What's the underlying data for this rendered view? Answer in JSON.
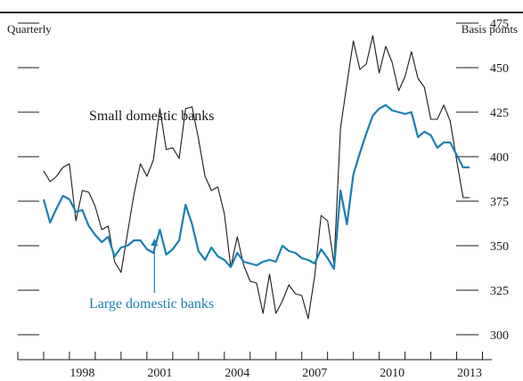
{
  "header": {
    "left": "Quarterly",
    "right": "Basis points"
  },
  "chart_data": {
    "type": "line",
    "xlabel": "",
    "ylabel": "Basis points",
    "ylim": [
      288,
      488
    ],
    "xlim": [
      1996.0,
      2014.5
    ],
    "xticks": [
      1998,
      2001,
      2004,
      2007,
      2010,
      2013
    ],
    "yticks": [
      300,
      325,
      350,
      375,
      400,
      425,
      450,
      475
    ],
    "grid": false,
    "series": [
      {
        "name": "Small domestic banks",
        "color": "#1a1a1a",
        "x": [
          1997.0,
          1997.25,
          1997.5,
          1997.75,
          1998.0,
          1998.25,
          1998.5,
          1998.75,
          1999.0,
          1999.25,
          1999.5,
          1999.75,
          2000.0,
          2000.25,
          2000.5,
          2000.75,
          2001.0,
          2001.25,
          2001.5,
          2001.75,
          2002.0,
          2002.25,
          2002.5,
          2002.75,
          2003.0,
          2003.25,
          2003.5,
          2003.75,
          2004.0,
          2004.25,
          2004.5,
          2004.75,
          2005.0,
          2005.25,
          2005.5,
          2005.75,
          2006.0,
          2006.25,
          2006.5,
          2006.75,
          2007.0,
          2007.25,
          2007.5,
          2007.75,
          2008.0,
          2008.25,
          2008.5,
          2008.75,
          2009.0,
          2009.25,
          2009.5,
          2009.75,
          2010.0,
          2010.25,
          2010.5,
          2010.75,
          2011.0,
          2011.25,
          2011.5,
          2011.75,
          2012.0,
          2012.25,
          2012.5,
          2012.75,
          2013.0,
          2013.25,
          2013.5
        ],
        "values": [
          392,
          386,
          389,
          394,
          396,
          364,
          381,
          380,
          372,
          359,
          361,
          341,
          335,
          357,
          379,
          396,
          389,
          398,
          427,
          404,
          405,
          399,
          427,
          428,
          410,
          389,
          381,
          383,
          368,
          338,
          355,
          339,
          330,
          329,
          312,
          334,
          312,
          319,
          328,
          323,
          322,
          309,
          333,
          367,
          364,
          340,
          416,
          441,
          465,
          449,
          452,
          468,
          447,
          462,
          453,
          437,
          445,
          459,
          444,
          439,
          421,
          421,
          429,
          420,
          398,
          377,
          377
        ]
      },
      {
        "name": "Large domestic banks",
        "color": "#1a7fb0",
        "x": [
          1997.0,
          1997.25,
          1997.5,
          1997.75,
          1998.0,
          1998.25,
          1998.5,
          1998.75,
          1999.0,
          1999.25,
          1999.5,
          1999.75,
          2000.0,
          2000.25,
          2000.5,
          2000.75,
          2001.0,
          2001.25,
          2001.5,
          2001.75,
          2002.0,
          2002.25,
          2002.5,
          2002.75,
          2003.0,
          2003.25,
          2003.5,
          2003.75,
          2004.0,
          2004.25,
          2004.5,
          2004.75,
          2005.0,
          2005.25,
          2005.5,
          2005.75,
          2006.0,
          2006.25,
          2006.5,
          2006.75,
          2007.0,
          2007.25,
          2007.5,
          2007.75,
          2008.0,
          2008.25,
          2008.5,
          2008.75,
          2009.0,
          2009.25,
          2009.5,
          2009.75,
          2010.0,
          2010.25,
          2010.5,
          2010.75,
          2011.0,
          2011.25,
          2011.5,
          2011.75,
          2012.0,
          2012.25,
          2012.5,
          2012.75,
          2013.0,
          2013.25,
          2013.5
        ],
        "values": [
          376,
          363,
          371,
          378,
          376,
          369,
          370,
          361,
          356,
          352,
          355,
          344,
          349,
          350,
          353,
          353,
          348,
          346,
          359,
          345,
          348,
          353,
          373,
          362,
          347,
          342,
          349,
          344,
          342,
          338,
          346,
          341,
          340,
          339,
          341,
          342,
          341,
          350,
          347,
          346,
          343,
          342,
          340,
          348,
          343,
          337,
          381,
          362,
          390,
          402,
          413,
          423,
          427,
          429,
          426,
          425,
          424,
          425,
          411,
          414,
          412,
          405,
          408,
          408,
          401,
          394,
          394
        ]
      }
    ],
    "annotations": [
      {
        "text": "Small domestic banks",
        "series": "Small domestic banks"
      },
      {
        "text": "Large domestic banks",
        "series": "Large domestic banks",
        "arrow_to": [
          2001.5,
          358
        ]
      }
    ]
  }
}
